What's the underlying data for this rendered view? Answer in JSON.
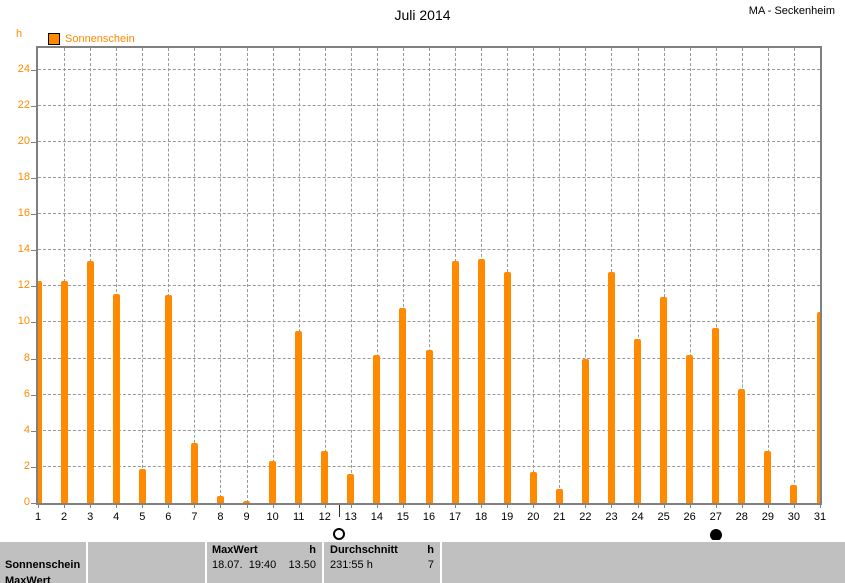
{
  "header": {
    "title": "Juli 2014",
    "station": "MA - Seckenheim"
  },
  "legend": {
    "label": "Sonnenschein",
    "unit": "h"
  },
  "chart_data": {
    "type": "bar",
    "title": "Juli 2014",
    "subtitle": "MA - Seckenheim",
    "series": [
      {
        "name": "Sonnenschein",
        "values": [
          12.3,
          12.3,
          13.4,
          11.6,
          1.9,
          11.5,
          3.3,
          0.4,
          0.1,
          2.3,
          9.5,
          2.9,
          1.6,
          8.2,
          10.8,
          8.5,
          13.4,
          13.5,
          12.8,
          1.7,
          0.8,
          8.0,
          12.8,
          9.1,
          11.4,
          8.2,
          9.7,
          6.3,
          2.9,
          1.0,
          10.6
        ]
      }
    ],
    "categories": [
      1,
      2,
      3,
      4,
      5,
      6,
      7,
      8,
      9,
      10,
      11,
      12,
      13,
      14,
      15,
      16,
      17,
      18,
      19,
      20,
      21,
      22,
      23,
      24,
      25,
      26,
      27,
      28,
      29,
      30,
      31
    ],
    "xlabel": "",
    "ylabel": "h",
    "ylim": [
      0,
      25.2
    ],
    "yticks": [
      0,
      2,
      4,
      6,
      8,
      10,
      12,
      14,
      16,
      18,
      20,
      22,
      24
    ],
    "grid": true,
    "legend_position": "top-left",
    "bar_color": "#FF8A00",
    "annotations": [
      {
        "name": "full-moon",
        "day": 12.55
      },
      {
        "name": "new-moon",
        "day": 27
      }
    ]
  },
  "summary_table": {
    "series_label": "Sonnenschein",
    "clipped_label": "MaxWert",
    "max": {
      "header": "MaxWert",
      "unit": "h",
      "datetime": "18.07.  19:40",
      "value": "13.50"
    },
    "avg": {
      "header": "Durchschnitt",
      "unit": "h",
      "total": "231:55 h",
      "value": "7"
    }
  },
  "colors": {
    "accent_orange": "#FF8A00",
    "grid_gray": "#989898",
    "axis_gray": "#808080",
    "table_bg": "#C0C0C0",
    "text_black": "#000000"
  }
}
